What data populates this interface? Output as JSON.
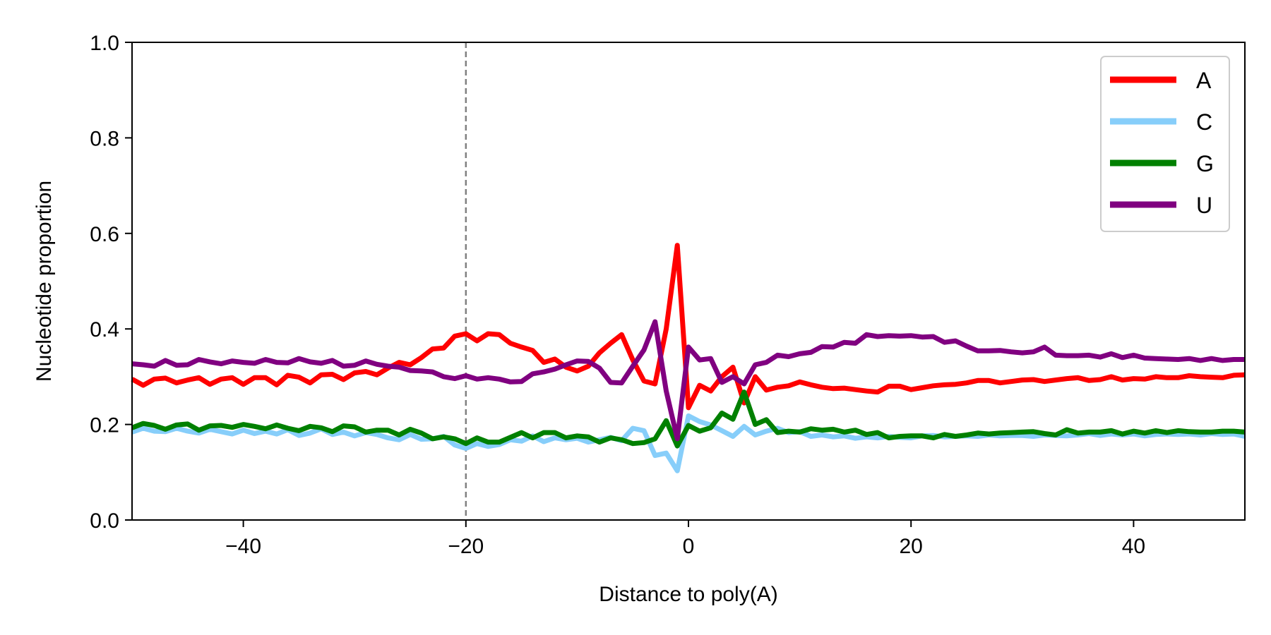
{
  "chart_data": {
    "type": "line",
    "title": "",
    "xlabel": "Distance to poly(A)",
    "ylabel": "Nucleotide proportion",
    "xlim": [
      -50,
      50
    ],
    "ylim": [
      0.0,
      1.0
    ],
    "xticks": [
      -40,
      -20,
      0,
      20,
      40
    ],
    "xtick_labels": [
      "−40",
      "−20",
      "0",
      "20",
      "40"
    ],
    "yticks": [
      0.0,
      0.2,
      0.4,
      0.6,
      0.8,
      1.0
    ],
    "ytick_labels": [
      "0.0",
      "0.2",
      "0.4",
      "0.6",
      "0.8",
      "1.0"
    ],
    "vline": {
      "x": -20,
      "style": "dashed",
      "color": "#808080"
    },
    "grid": false,
    "legend_position": "top-right",
    "x": [
      -50,
      -49,
      -48,
      -47,
      -46,
      -45,
      -44,
      -43,
      -42,
      -41,
      -40,
      -39,
      -38,
      -37,
      -36,
      -35,
      -34,
      -33,
      -32,
      -31,
      -30,
      -29,
      -28,
      -27,
      -26,
      -25,
      -24,
      -23,
      -22,
      -21,
      -20,
      -19,
      -18,
      -17,
      -16,
      -15,
      -14,
      -13,
      -12,
      -11,
      -10,
      -9,
      -8,
      -7,
      -6,
      -5,
      -4,
      -3,
      -2,
      -1,
      0,
      1,
      2,
      3,
      4,
      5,
      6,
      7,
      8,
      9,
      10,
      11,
      12,
      13,
      14,
      15,
      16,
      17,
      18,
      19,
      20,
      21,
      22,
      23,
      24,
      25,
      26,
      27,
      28,
      29,
      30,
      31,
      32,
      33,
      34,
      35,
      36,
      37,
      38,
      39,
      40,
      41,
      42,
      43,
      44,
      45,
      46,
      47,
      48,
      49,
      50
    ],
    "series": [
      {
        "name": "A",
        "color": "#ff0000",
        "values": [
          0.295,
          0.282,
          0.295,
          0.297,
          0.287,
          0.293,
          0.298,
          0.284,
          0.295,
          0.298,
          0.284,
          0.298,
          0.298,
          0.283,
          0.303,
          0.299,
          0.287,
          0.304,
          0.305,
          0.294,
          0.308,
          0.311,
          0.304,
          0.318,
          0.33,
          0.325,
          0.34,
          0.358,
          0.36,
          0.385,
          0.39,
          0.375,
          0.39,
          0.388,
          0.37,
          0.362,
          0.355,
          0.33,
          0.337,
          0.32,
          0.312,
          0.322,
          0.35,
          0.37,
          0.388,
          0.335,
          0.291,
          0.285,
          0.4,
          0.575,
          0.235,
          0.282,
          0.27,
          0.3,
          0.32,
          0.245,
          0.3,
          0.272,
          0.278,
          0.281,
          0.289,
          0.283,
          0.278,
          0.275,
          0.276,
          0.273,
          0.27,
          0.268,
          0.28,
          0.28,
          0.273,
          0.277,
          0.281,
          0.283,
          0.284,
          0.287,
          0.292,
          0.292,
          0.287,
          0.29,
          0.293,
          0.294,
          0.29,
          0.293,
          0.296,
          0.298,
          0.292,
          0.294,
          0.3,
          0.293,
          0.296,
          0.295,
          0.3,
          0.298,
          0.298,
          0.302,
          0.3,
          0.299,
          0.298,
          0.303,
          0.304
        ]
      },
      {
        "name": "C",
        "color": "#87cefa",
        "values": [
          0.184,
          0.192,
          0.186,
          0.185,
          0.192,
          0.186,
          0.182,
          0.19,
          0.185,
          0.18,
          0.188,
          0.181,
          0.186,
          0.18,
          0.189,
          0.177,
          0.182,
          0.191,
          0.179,
          0.184,
          0.176,
          0.183,
          0.179,
          0.172,
          0.168,
          0.179,
          0.169,
          0.17,
          0.175,
          0.157,
          0.15,
          0.16,
          0.154,
          0.158,
          0.168,
          0.165,
          0.176,
          0.164,
          0.172,
          0.168,
          0.171,
          0.163,
          0.168,
          0.173,
          0.166,
          0.192,
          0.187,
          0.135,
          0.14,
          0.103,
          0.218,
          0.206,
          0.199,
          0.187,
          0.175,
          0.196,
          0.178,
          0.186,
          0.192,
          0.183,
          0.185,
          0.175,
          0.178,
          0.174,
          0.176,
          0.171,
          0.174,
          0.172,
          0.175,
          0.173,
          0.172,
          0.176,
          0.177,
          0.174,
          0.175,
          0.176,
          0.175,
          0.178,
          0.176,
          0.177,
          0.177,
          0.175,
          0.178,
          0.177,
          0.176,
          0.178,
          0.181,
          0.177,
          0.18,
          0.178,
          0.18,
          0.176,
          0.179,
          0.18,
          0.179,
          0.18,
          0.178,
          0.181,
          0.179,
          0.18,
          0.175
        ]
      },
      {
        "name": "G",
        "color": "#008000",
        "values": [
          0.193,
          0.202,
          0.198,
          0.19,
          0.199,
          0.201,
          0.188,
          0.197,
          0.198,
          0.194,
          0.2,
          0.196,
          0.191,
          0.199,
          0.192,
          0.187,
          0.196,
          0.193,
          0.185,
          0.197,
          0.195,
          0.184,
          0.188,
          0.188,
          0.178,
          0.19,
          0.182,
          0.17,
          0.174,
          0.17,
          0.16,
          0.172,
          0.163,
          0.163,
          0.173,
          0.183,
          0.172,
          0.183,
          0.183,
          0.172,
          0.176,
          0.174,
          0.163,
          0.172,
          0.168,
          0.16,
          0.162,
          0.17,
          0.208,
          0.155,
          0.198,
          0.186,
          0.193,
          0.224,
          0.211,
          0.268,
          0.2,
          0.21,
          0.183,
          0.186,
          0.184,
          0.191,
          0.188,
          0.19,
          0.184,
          0.188,
          0.179,
          0.183,
          0.172,
          0.175,
          0.176,
          0.176,
          0.172,
          0.179,
          0.175,
          0.178,
          0.182,
          0.18,
          0.182,
          0.183,
          0.184,
          0.185,
          0.181,
          0.178,
          0.189,
          0.182,
          0.184,
          0.184,
          0.187,
          0.18,
          0.186,
          0.182,
          0.187,
          0.183,
          0.187,
          0.185,
          0.184,
          0.184,
          0.186,
          0.186,
          0.184
        ]
      },
      {
        "name": "U",
        "color": "#800080",
        "values": [
          0.327,
          0.325,
          0.322,
          0.334,
          0.324,
          0.325,
          0.336,
          0.331,
          0.327,
          0.333,
          0.33,
          0.328,
          0.336,
          0.33,
          0.329,
          0.338,
          0.331,
          0.328,
          0.334,
          0.322,
          0.324,
          0.333,
          0.326,
          0.322,
          0.32,
          0.313,
          0.312,
          0.31,
          0.3,
          0.296,
          0.302,
          0.295,
          0.298,
          0.295,
          0.289,
          0.29,
          0.306,
          0.31,
          0.316,
          0.325,
          0.333,
          0.332,
          0.318,
          0.288,
          0.287,
          0.322,
          0.356,
          0.415,
          0.27,
          0.17,
          0.362,
          0.335,
          0.338,
          0.288,
          0.3,
          0.285,
          0.325,
          0.33,
          0.345,
          0.342,
          0.348,
          0.351,
          0.363,
          0.362,
          0.372,
          0.37,
          0.388,
          0.384,
          0.386,
          0.385,
          0.386,
          0.383,
          0.384,
          0.372,
          0.375,
          0.364,
          0.354,
          0.354,
          0.355,
          0.352,
          0.35,
          0.352,
          0.362,
          0.345,
          0.344,
          0.344,
          0.345,
          0.341,
          0.348,
          0.34,
          0.345,
          0.339,
          0.338,
          0.337,
          0.336,
          0.338,
          0.334,
          0.338,
          0.334,
          0.336,
          0.336
        ]
      }
    ]
  }
}
